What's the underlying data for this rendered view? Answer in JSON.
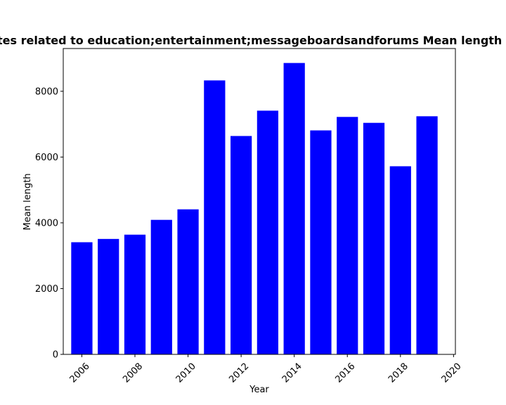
{
  "chart_data": {
    "type": "bar",
    "title": "Websites related to education;entertainment;messageboardsandforums Mean length in pages",
    "xlabel": "Year",
    "ylabel": "Mean length",
    "x": [
      2006,
      2007,
      2008,
      2009,
      2010,
      2011,
      2012,
      2013,
      2014,
      2015,
      2016,
      2017,
      2018,
      2019
    ],
    "values": [
      3410,
      3510,
      3640,
      4090,
      4410,
      8330,
      6640,
      7410,
      8860,
      6810,
      7220,
      7040,
      5720,
      7240
    ],
    "xticks": [
      2006,
      2008,
      2010,
      2012,
      2014,
      2016,
      2018,
      2020
    ],
    "yticks": [
      0,
      2000,
      4000,
      6000,
      8000
    ],
    "xlim": [
      2005.3,
      2020.07
    ],
    "ylim": [
      0,
      9300
    ],
    "bar_color": "#0000ff",
    "grid": false
  }
}
